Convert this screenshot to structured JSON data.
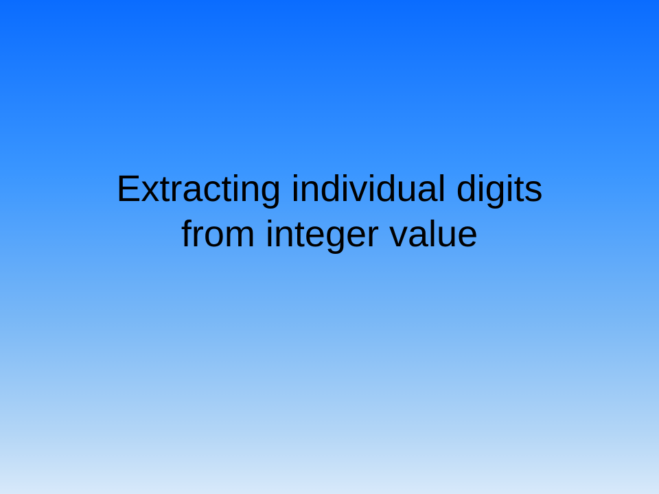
{
  "slide": {
    "title_lines": [
      "Extracting individual digits",
      "from integer value"
    ]
  }
}
